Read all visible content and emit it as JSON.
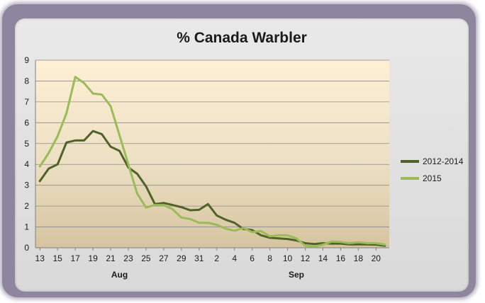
{
  "chart_data": {
    "type": "line",
    "title": "% Canada Warbler",
    "xlabel": "",
    "ylabel": "",
    "ylim": [
      0,
      9
    ],
    "yticks": [
      "0",
      "1",
      "2",
      "3",
      "4",
      "5",
      "6",
      "7",
      "8",
      "9"
    ],
    "x": [
      "Aug 13",
      "Aug 14",
      "Aug 15",
      "Aug 16",
      "Aug 17",
      "Aug 18",
      "Aug 19",
      "Aug 20",
      "Aug 21",
      "Aug 22",
      "Aug 23",
      "Aug 24",
      "Aug 25",
      "Aug 26",
      "Aug 27",
      "Aug 28",
      "Aug 29",
      "Aug 30",
      "Aug 31",
      "Sep 1",
      "Sep 2",
      "Sep 3",
      "Sep 4",
      "Sep 5",
      "Sep 6",
      "Sep 7",
      "Sep 8",
      "Sep 9",
      "Sep 10",
      "Sep 11",
      "Sep 12",
      "Sep 13",
      "Sep 14",
      "Sep 15",
      "Sep 16",
      "Sep 17",
      "Sep 18",
      "Sep 19",
      "Sep 20",
      "Sep 21"
    ],
    "x_tick_labels": [
      "13",
      "15",
      "17",
      "19",
      "21",
      "23",
      "25",
      "27",
      "29",
      "31",
      "2",
      "4",
      "6",
      "8",
      "10",
      "12",
      "14",
      "16",
      "18",
      "20"
    ],
    "month_labels": [
      "Aug",
      "Sep"
    ],
    "grid": true,
    "legend_position": "right",
    "series": [
      {
        "name": "2012-2014",
        "color": "#4f6228",
        "values": [
          3.2,
          3.8,
          4.0,
          5.05,
          5.15,
          5.15,
          5.6,
          5.45,
          4.85,
          4.65,
          3.85,
          3.55,
          2.95,
          2.1,
          2.15,
          2.05,
          1.95,
          1.8,
          1.82,
          2.1,
          1.55,
          1.35,
          1.2,
          0.9,
          0.85,
          0.6,
          0.48,
          0.45,
          0.42,
          0.35,
          0.22,
          0.18,
          0.22,
          0.2,
          0.2,
          0.16,
          0.16,
          0.16,
          0.15,
          0.1
        ]
      },
      {
        "name": "2015",
        "color": "#9bbb59",
        "values": [
          3.9,
          4.55,
          5.35,
          6.45,
          8.2,
          7.9,
          7.4,
          7.35,
          6.8,
          5.4,
          4.0,
          2.6,
          1.93,
          2.05,
          2.05,
          1.85,
          1.45,
          1.38,
          1.2,
          1.2,
          1.1,
          0.92,
          0.82,
          0.95,
          0.75,
          0.8,
          0.55,
          0.6,
          0.6,
          0.45,
          0.1,
          0.05,
          0.15,
          0.3,
          0.28,
          0.22,
          0.27,
          0.22,
          0.22,
          0.15
        ]
      }
    ]
  }
}
